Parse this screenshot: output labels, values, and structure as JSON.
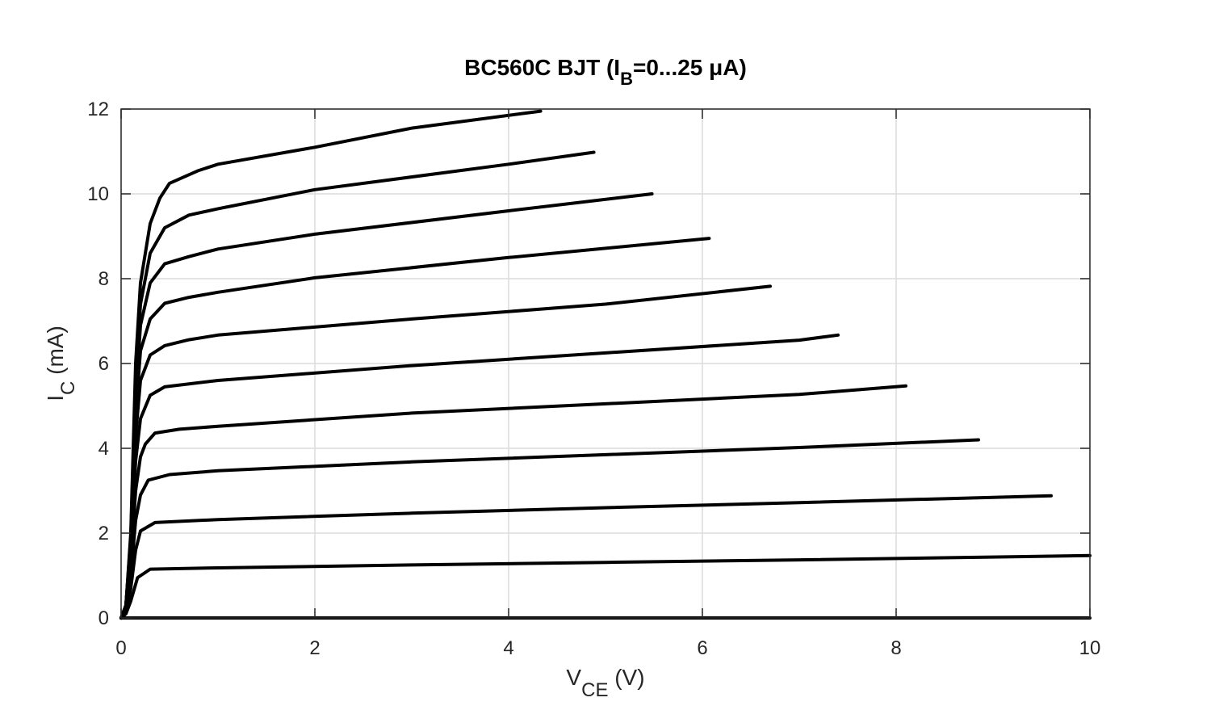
{
  "chart_data": {
    "type": "line",
    "title": {
      "main": "BC560C BJT (I",
      "sub": "B",
      "rest": "=0...25 μA)"
    },
    "xlabel": {
      "main": "V",
      "sub": "CE",
      "unit": " (V)"
    },
    "ylabel": {
      "main": "I",
      "sub": "C",
      "unit": " (mA)"
    },
    "xlim": [
      0,
      10
    ],
    "ylim": [
      0,
      12
    ],
    "xticks": [
      0,
      2,
      4,
      6,
      8,
      10
    ],
    "yticks": [
      0,
      2,
      4,
      6,
      8,
      10,
      12
    ],
    "grid": true,
    "line_color": "#000000",
    "series": [
      {
        "values": [
          [
            0,
            0
          ],
          [
            10,
            0
          ]
        ]
      },
      {
        "values": [
          [
            0,
            0
          ],
          [
            0.05,
            0.1
          ],
          [
            0.1,
            0.4
          ],
          [
            0.17,
            0.95
          ],
          [
            0.3,
            1.15
          ],
          [
            1,
            1.18
          ],
          [
            3,
            1.25
          ],
          [
            5,
            1.31
          ],
          [
            7,
            1.37
          ],
          [
            10,
            1.47
          ]
        ]
      },
      {
        "values": [
          [
            0,
            0
          ],
          [
            0.05,
            0.15
          ],
          [
            0.1,
            0.7
          ],
          [
            0.15,
            1.6
          ],
          [
            0.2,
            2.05
          ],
          [
            0.35,
            2.25
          ],
          [
            1,
            2.32
          ],
          [
            3,
            2.47
          ],
          [
            5,
            2.6
          ],
          [
            7,
            2.72
          ],
          [
            9.6,
            2.88
          ]
        ]
      },
      {
        "values": [
          [
            0,
            0
          ],
          [
            0.05,
            0.2
          ],
          [
            0.1,
            1
          ],
          [
            0.15,
            2.3
          ],
          [
            0.2,
            2.9
          ],
          [
            0.28,
            3.25
          ],
          [
            0.5,
            3.38
          ],
          [
            1,
            3.47
          ],
          [
            3,
            3.68
          ],
          [
            5,
            3.85
          ],
          [
            7,
            4.02
          ],
          [
            8.85,
            4.2
          ]
        ]
      },
      {
        "values": [
          [
            0,
            0
          ],
          [
            0.05,
            0.2
          ],
          [
            0.1,
            1.3
          ],
          [
            0.15,
            3
          ],
          [
            0.2,
            3.8
          ],
          [
            0.25,
            4.1
          ],
          [
            0.35,
            4.36
          ],
          [
            0.6,
            4.45
          ],
          [
            1,
            4.52
          ],
          [
            3,
            4.83
          ],
          [
            5,
            5.05
          ],
          [
            7,
            5.27
          ],
          [
            8.1,
            5.47
          ]
        ]
      },
      {
        "values": [
          [
            0,
            0
          ],
          [
            0.05,
            0.25
          ],
          [
            0.1,
            1.5
          ],
          [
            0.15,
            3.7
          ],
          [
            0.2,
            4.7
          ],
          [
            0.3,
            5.25
          ],
          [
            0.45,
            5.45
          ],
          [
            1,
            5.6
          ],
          [
            3,
            5.95
          ],
          [
            5,
            6.25
          ],
          [
            7,
            6.55
          ],
          [
            7.4,
            6.67
          ]
        ]
      },
      {
        "values": [
          [
            0,
            0
          ],
          [
            0.05,
            0.25
          ],
          [
            0.1,
            1.6
          ],
          [
            0.15,
            4.3
          ],
          [
            0.2,
            5.6
          ],
          [
            0.3,
            6.2
          ],
          [
            0.45,
            6.42
          ],
          [
            0.7,
            6.56
          ],
          [
            1,
            6.67
          ],
          [
            3,
            7.05
          ],
          [
            5,
            7.4
          ],
          [
            6.7,
            7.82
          ]
        ]
      },
      {
        "values": [
          [
            0,
            0
          ],
          [
            0.05,
            0.3
          ],
          [
            0.1,
            1.7
          ],
          [
            0.15,
            4.8
          ],
          [
            0.2,
            6.3
          ],
          [
            0.3,
            7.05
          ],
          [
            0.45,
            7.42
          ],
          [
            0.7,
            7.56
          ],
          [
            1,
            7.68
          ],
          [
            2,
            8.02
          ],
          [
            4,
            8.5
          ],
          [
            6.07,
            8.95
          ]
        ]
      },
      {
        "values": [
          [
            0,
            0
          ],
          [
            0.05,
            0.3
          ],
          [
            0.1,
            1.8
          ],
          [
            0.15,
            5.2
          ],
          [
            0.2,
            6.9
          ],
          [
            0.3,
            7.9
          ],
          [
            0.45,
            8.35
          ],
          [
            0.7,
            8.52
          ],
          [
            1,
            8.7
          ],
          [
            2,
            9.05
          ],
          [
            4,
            9.6
          ],
          [
            5.48,
            10
          ]
        ]
      },
      {
        "values": [
          [
            0,
            0
          ],
          [
            0.05,
            0.3
          ],
          [
            0.1,
            1.9
          ],
          [
            0.15,
            5.6
          ],
          [
            0.2,
            7.4
          ],
          [
            0.3,
            8.6
          ],
          [
            0.45,
            9.2
          ],
          [
            0.7,
            9.5
          ],
          [
            1,
            9.65
          ],
          [
            2,
            10.1
          ],
          [
            4,
            10.7
          ],
          [
            4.88,
            10.98
          ]
        ]
      },
      {
        "values": [
          [
            0,
            0
          ],
          [
            0.05,
            0.3
          ],
          [
            0.1,
            2
          ],
          [
            0.15,
            6
          ],
          [
            0.2,
            7.9
          ],
          [
            0.3,
            9.3
          ],
          [
            0.4,
            9.9
          ],
          [
            0.5,
            10.25
          ],
          [
            0.8,
            10.55
          ],
          [
            1,
            10.7
          ],
          [
            2,
            11.1
          ],
          [
            3,
            11.55
          ],
          [
            4.33,
            11.95
          ]
        ]
      }
    ]
  }
}
